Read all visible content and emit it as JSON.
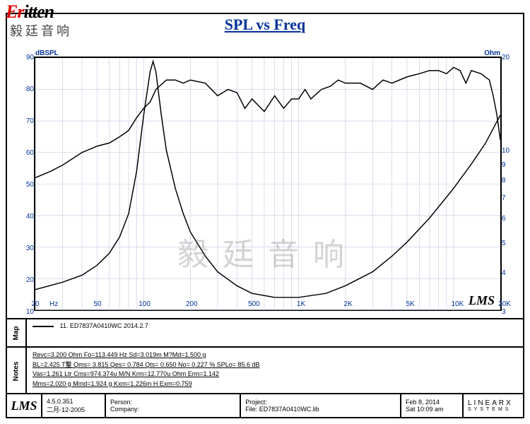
{
  "logo": {
    "red_part": "Er",
    "black_part": "itten",
    "subtitle": "毅廷音响"
  },
  "title": "SPL vs Freq",
  "chart": {
    "type": "line",
    "x_scale": "log",
    "xlim": [
      20,
      20000
    ],
    "y1": {
      "label": "dBSPL",
      "lim": [
        10,
        90
      ],
      "ticks": [
        10,
        20,
        30,
        40,
        50,
        60,
        70,
        80,
        90
      ],
      "color": "#003399"
    },
    "y2": {
      "label": "Ohm",
      "lim_log": [
        3,
        20
      ],
      "ticks": [
        3,
        4,
        5,
        6,
        7,
        8,
        9,
        10,
        20
      ],
      "color": "#003399"
    },
    "x_ticks": [
      20,
      50,
      100,
      200,
      500,
      1000,
      2000,
      5000,
      10000,
      20000
    ],
    "x_tick_labels": [
      "20",
      "50",
      "100",
      "200",
      "500",
      "1K",
      "2K",
      "5K",
      "10K",
      "20K"
    ],
    "x_unit": "Hz",
    "line_color": "#000000",
    "line_width": 1.5,
    "grid_color": "#c0c8e0",
    "background_color": "#ffffff",
    "series_spl": [
      [
        20,
        52
      ],
      [
        25,
        54
      ],
      [
        30,
        56
      ],
      [
        40,
        60
      ],
      [
        50,
        62
      ],
      [
        60,
        63
      ],
      [
        70,
        65
      ],
      [
        80,
        67
      ],
      [
        90,
        71
      ],
      [
        100,
        74
      ],
      [
        110,
        76
      ],
      [
        120,
        80
      ],
      [
        140,
        83
      ],
      [
        160,
        83
      ],
      [
        180,
        82
      ],
      [
        200,
        83
      ],
      [
        250,
        82
      ],
      [
        300,
        78
      ],
      [
        350,
        80
      ],
      [
        400,
        79
      ],
      [
        450,
        74
      ],
      [
        500,
        77
      ],
      [
        600,
        73
      ],
      [
        700,
        78
      ],
      [
        800,
        74
      ],
      [
        900,
        77
      ],
      [
        1000,
        77
      ],
      [
        1100,
        80
      ],
      [
        1200,
        77
      ],
      [
        1400,
        80
      ],
      [
        1600,
        81
      ],
      [
        1800,
        83
      ],
      [
        2000,
        82
      ],
      [
        2500,
        82
      ],
      [
        3000,
        80
      ],
      [
        3500,
        83
      ],
      [
        4000,
        82
      ],
      [
        5000,
        84
      ],
      [
        6000,
        85
      ],
      [
        7000,
        86
      ],
      [
        8000,
        86
      ],
      [
        9000,
        85
      ],
      [
        10000,
        87
      ],
      [
        11000,
        86
      ],
      [
        12000,
        82
      ],
      [
        13000,
        86
      ],
      [
        15000,
        85
      ],
      [
        17000,
        83
      ],
      [
        18000,
        78
      ],
      [
        19000,
        72
      ],
      [
        20000,
        64
      ]
    ],
    "series_imp": [
      [
        20,
        3.5
      ],
      [
        30,
        3.7
      ],
      [
        40,
        3.9
      ],
      [
        50,
        4.2
      ],
      [
        60,
        4.6
      ],
      [
        70,
        5.2
      ],
      [
        80,
        6.2
      ],
      [
        90,
        8.5
      ],
      [
        100,
        13
      ],
      [
        110,
        18
      ],
      [
        115,
        19.5
      ],
      [
        120,
        18
      ],
      [
        130,
        13
      ],
      [
        140,
        10
      ],
      [
        160,
        7.5
      ],
      [
        180,
        6.2
      ],
      [
        200,
        5.4
      ],
      [
        250,
        4.5
      ],
      [
        300,
        4.0
      ],
      [
        400,
        3.6
      ],
      [
        500,
        3.4
      ],
      [
        700,
        3.3
      ],
      [
        1000,
        3.3
      ],
      [
        1500,
        3.4
      ],
      [
        2000,
        3.6
      ],
      [
        3000,
        4.0
      ],
      [
        4000,
        4.5
      ],
      [
        5000,
        5.0
      ],
      [
        7000,
        6.0
      ],
      [
        10000,
        7.5
      ],
      [
        13000,
        9
      ],
      [
        16000,
        10.5
      ],
      [
        20000,
        13
      ]
    ]
  },
  "watermark_cn": "毅廷音响",
  "watermark_lms": "LMS",
  "map": {
    "label": "Map",
    "legend_text": "11. ED7837A0410WC  2014.2.7"
  },
  "notes": {
    "label": "Notes",
    "lines": [
      "Revc=3.200 Ohm  Fo=113.449 Hz  Sd=3.019m M?Md=1.500 g",
      "BL=2.425 T轚  Qms= 3.815  Qes= 0.784  Qts= 0.650  No= 0.227 %  SPLo= 85.6 dB",
      "Vas=1.261 Ltr  Cms=974.374u M/N  Krm=12.770u Ohm  Erm=1.142",
      "Mms=2.020 g  Mmd=1.924 g  Kxm=1.226m H  Exm=0.759"
    ]
  },
  "footer": {
    "lms": "LMS",
    "version": "4.5.0.351",
    "version_date": "二月-12-2005",
    "person_label": "Person:",
    "company_label": "Company:",
    "project_label": "Project:",
    "file_label": "File: ED7837A0410WC.lib",
    "date": "Feb  8, 2014",
    "time": "Sat 10:09 am",
    "linearx": "LINEARX",
    "linearx_sub": "SYSTEMS"
  }
}
